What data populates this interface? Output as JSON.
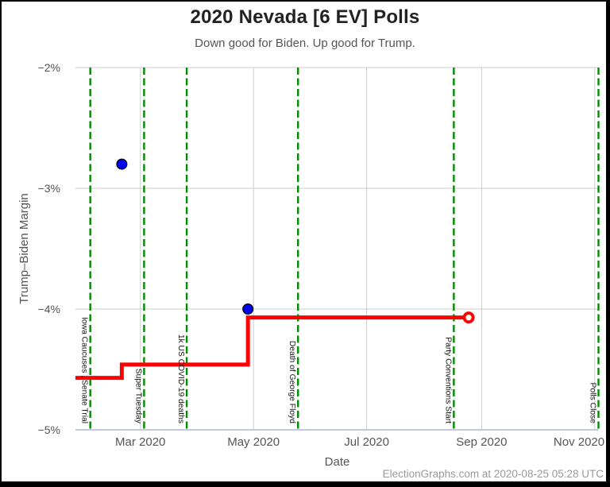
{
  "chart_data": {
    "type": "line",
    "title": "2020 Nevada [6 EV] Polls",
    "subtitle": "Down good for Biden. Up good for Trump.",
    "xlabel": "Date",
    "ylabel": "Trump–Biden Margin",
    "footer": "ElectionGraphs.com at 2020-08-25 05:28 UTC",
    "ylim": [
      -5,
      -2
    ],
    "x_domain": [
      "2020-01-26",
      "2020-11-03"
    ],
    "y_ticks": [
      {
        "value": -2,
        "label": "−2%"
      },
      {
        "value": -3,
        "label": "−3%"
      },
      {
        "value": -4,
        "label": "−4%"
      },
      {
        "value": -5,
        "label": "−5%"
      }
    ],
    "x_ticks": [
      {
        "date": "2020-03-01",
        "label": "Mar 2020"
      },
      {
        "date": "2020-05-01",
        "label": "May 2020"
      },
      {
        "date": "2020-07-01",
        "label": "Jul 2020"
      },
      {
        "date": "2020-09-01",
        "label": "Sep 2020"
      },
      {
        "date": "2020-11-01",
        "label": "Nov 2020"
      }
    ],
    "events": [
      {
        "date": "2020-02-03",
        "label": "Iowa Caucuses , Senate Trial"
      },
      {
        "date": "2020-03-03",
        "label": "Super Tuesday"
      },
      {
        "date": "2020-03-26",
        "label": "1k US COVID-19 deaths"
      },
      {
        "date": "2020-05-25",
        "label": "Death of George Floyd"
      },
      {
        "date": "2020-08-17",
        "label": "Party Conventions Start"
      },
      {
        "date": "2020-11-03",
        "label": "Polls Close"
      }
    ],
    "polls": [
      {
        "date": "2020-02-20",
        "margin": -2.8
      },
      {
        "date": "2020-04-28",
        "margin": -4.0
      }
    ],
    "average_line": [
      {
        "date": "2020-01-26",
        "margin": -4.57
      },
      {
        "date": "2020-02-20",
        "margin": -4.57
      },
      {
        "date": "2020-02-20",
        "margin": -4.46
      },
      {
        "date": "2020-04-28",
        "margin": -4.46
      },
      {
        "date": "2020-04-28",
        "margin": -4.07
      },
      {
        "date": "2020-08-25",
        "margin": -4.07
      }
    ],
    "endpoint": {
      "date": "2020-08-25",
      "margin": -4.07
    },
    "colors": {
      "poll_point": "#0000ee",
      "poll_point_stroke": "#000000",
      "average_line": "#ff0000",
      "event_line": "#008b00",
      "gridline": "#cccccc",
      "axis_line": "#c3c8e2",
      "endpoint_fill": "#ffffff",
      "event_label_text": "#111111",
      "tick_text": "#555555",
      "footer_text": "#999999"
    },
    "legend_position": "none",
    "grid": true
  }
}
